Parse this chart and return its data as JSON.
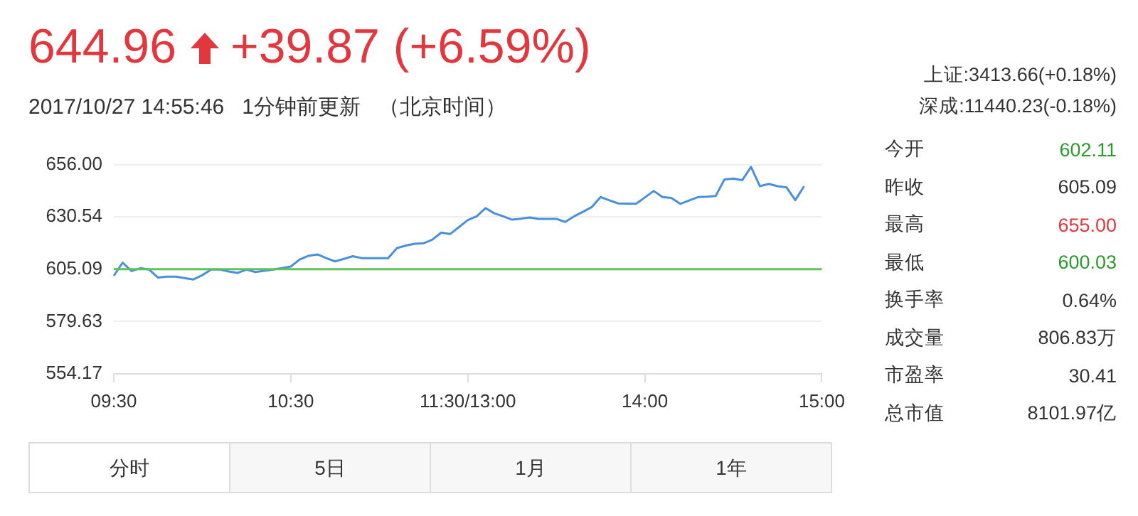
{
  "chart_data": {
    "type": "line",
    "title": "644.96",
    "subtitle": "2017/10/27 14:55:46   1分钟前更新   （北京时间）",
    "annotations": [
      "+39.87 (+6.59%)",
      "上证:3413.66(+0.18%)",
      "深成:11440.23(-0.18%)",
      "今开",
      "602.11",
      "昨收",
      "605.09",
      "最高",
      "655.00",
      "最低",
      "600.03",
      "换手率",
      "0.64%",
      "成交量",
      "806.83万",
      "市盈率",
      "30.41",
      "总市值",
      "8101.97亿",
      "分时",
      "5日",
      "1月",
      "1年"
    ],
    "categories": [
      "09:30",
      null,
      null,
      null,
      null,
      null,
      null,
      null,
      null,
      null,
      null,
      null,
      null,
      null,
      null,
      null,
      null,
      null,
      null,
      null,
      "10:30",
      null,
      null,
      null,
      null,
      null,
      null,
      null,
      null,
      null,
      null,
      null,
      null,
      null,
      null,
      null,
      null,
      null,
      null,
      null,
      "11:30/13:00",
      null,
      null,
      null,
      null,
      null,
      null,
      null,
      null,
      null,
      null,
      null,
      null,
      null,
      null,
      null,
      null,
      null,
      null,
      null,
      "14:00",
      null,
      null,
      null,
      null,
      null,
      null,
      null,
      null,
      null,
      null,
      null,
      null,
      null,
      null,
      null,
      null,
      null,
      null,
      null,
      "15:00"
    ],
    "series": [
      {
        "color": "#4a90d9",
        "values": [
          601.9,
          608.3,
          604.2,
          605.6,
          604.9,
          601.0,
          601.5,
          601.5,
          600.8,
          600.1,
          602.2,
          604.9,
          604.9,
          604.0,
          603.3,
          604.9,
          603.7,
          604.3,
          604.9,
          605.6,
          606.4,
          609.8,
          611.6,
          612.3,
          610.5,
          608.9,
          610.1,
          611.4,
          610.5,
          610.5,
          610.5,
          610.5,
          615.4,
          616.6,
          617.5,
          617.7,
          619.5,
          622.9,
          622.2,
          625.6,
          629.0,
          630.8,
          634.8,
          632.3,
          630.8,
          629.2,
          629.7,
          630.3,
          629.6,
          629.6,
          629.6,
          628.1,
          630.8,
          633.0,
          635.3,
          640.2,
          638.6,
          637.1,
          637.0,
          636.9,
          640.0,
          643.2,
          640.2,
          639.8,
          636.9,
          638.5,
          640.2,
          640.4,
          640.7,
          648.8,
          649.2,
          648.4,
          654.9,
          645.5,
          646.6,
          645.5,
          645.0,
          638.7,
          645.5,
          null,
          null
        ]
      }
    ],
    "ylim": [
      554.17,
      656
    ],
    "yticks": [
      554.17,
      579.63,
      605.09,
      630.54,
      {
        "value": 656,
        "label": "656.00"
      }
    ],
    "ref_lines": [
      {
        "axis": "y",
        "value": 605.09,
        "color": "#5cc35c"
      }
    ],
    "grid": "y",
    "marker": "none",
    "line_style": "solid"
  }
}
